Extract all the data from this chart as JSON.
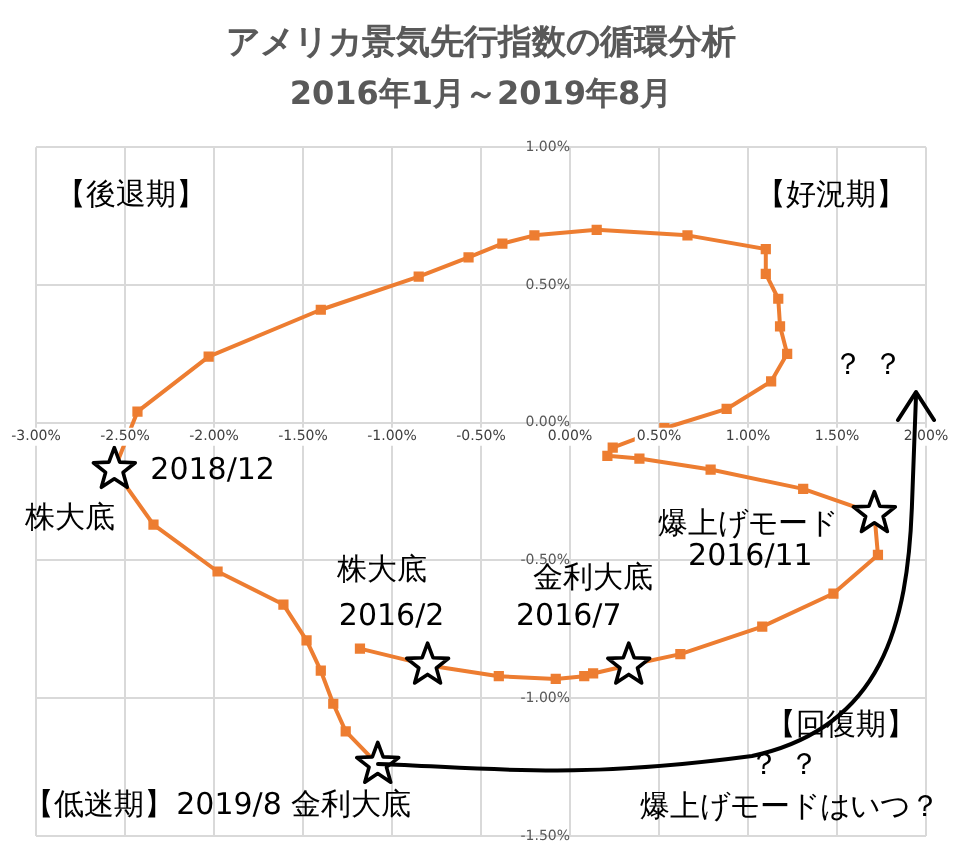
{
  "chart_data": {
    "type": "line",
    "title": "アメリカ景気先行指数の循環分析",
    "subtitle": "2016年1月～2019年8月",
    "series": [
      {
        "type": "line",
        "color": "#ed7d31",
        "marker": "square",
        "x": [
          -1.18,
          -0.8,
          -0.4,
          -0.08,
          0.08,
          0.13,
          0.33,
          0.62,
          1.08,
          1.48,
          1.73,
          1.71,
          1.31,
          0.79,
          0.39,
          0.21,
          0.24,
          0.53,
          0.88,
          1.13,
          1.22,
          1.18,
          1.17,
          1.1,
          1.1,
          0.66,
          0.15,
          -0.2,
          -0.38,
          -0.57,
          -0.85,
          -1.4,
          -2.03,
          -2.43,
          -2.56,
          -2.34,
          -1.98,
          -1.61,
          -1.48,
          -1.4,
          -1.33,
          -1.26,
          -1.08
        ],
        "values": [
          -0.82,
          -0.88,
          -0.92,
          -0.93,
          -0.92,
          -0.91,
          -0.88,
          -0.84,
          -0.74,
          -0.62,
          -0.48,
          -0.33,
          -0.24,
          -0.17,
          -0.13,
          -0.12,
          -0.09,
          -0.02,
          0.05,
          0.15,
          0.25,
          0.35,
          0.45,
          0.54,
          0.63,
          0.68,
          0.7,
          0.68,
          0.65,
          0.6,
          0.53,
          0.41,
          0.24,
          0.04,
          -0.17,
          -0.37,
          -0.54,
          -0.66,
          -0.79,
          -0.9,
          -1.02,
          -1.12,
          -1.24
        ]
      },
      {
        "type": "scatter",
        "color": "#000000",
        "marker": "star",
        "x": [
          -0.8,
          0.33,
          1.71,
          -2.56,
          -1.08
        ],
        "values": [
          -0.88,
          -0.88,
          -0.33,
          -0.17,
          -1.24
        ]
      }
    ],
    "xlim": [
      -3,
      2
    ],
    "ylim": [
      -1.5,
      1
    ],
    "xticks": [
      {
        "value": -3,
        "label": "-3.00%"
      },
      {
        "value": -2.5,
        "label": "-2.50%"
      },
      {
        "value": -2,
        "label": "-2.00%"
      },
      {
        "value": -1.5,
        "label": "-1.50%"
      },
      {
        "value": -1,
        "label": "-1.00%"
      },
      {
        "value": -0.5,
        "label": "-0.50%"
      },
      {
        "value": 0,
        "label": "0.00%"
      },
      {
        "value": 0.5,
        "label": "0.50%"
      },
      {
        "value": 1,
        "label": "1.00%"
      },
      {
        "value": 1.5,
        "label": "1.50%"
      },
      {
        "value": 2,
        "label": "2.00%"
      }
    ],
    "yticks": [
      {
        "value": -1.5,
        "label": "-1.50%"
      },
      {
        "value": -1,
        "label": "-1.00%"
      },
      {
        "value": -0.5,
        "label": "-0.50%"
      },
      {
        "value": 0,
        "label": "0.00%"
      },
      {
        "value": 0.5,
        "label": "0.50%"
      },
      {
        "value": 1,
        "label": "1.00%"
      }
    ],
    "grid": true,
    "legend": false,
    "annotations": [
      "【後退期】",
      "【好況期】",
      "？ ？",
      "【低迷期】",
      "【回復期】",
      "？ ？",
      "爆上げモードはいつ？",
      {
        "text": "2018/12",
        "x": -2.56,
        "y": -0.17
      },
      {
        "text": "株大底",
        "x": -2.56,
        "y": -0.17
      },
      {
        "text": "株大底",
        "x": -0.8,
        "y": -0.88
      },
      {
        "text": "2016/2",
        "x": -0.8,
        "y": -0.88
      },
      {
        "text": "金利大底",
        "x": 0.33,
        "y": -0.88
      },
      {
        "text": "2016/7",
        "x": 0.33,
        "y": -0.88
      },
      {
        "text": "爆上げモード",
        "x": 1.71,
        "y": -0.33
      },
      {
        "text": "2016/11",
        "x": 1.71,
        "y": -0.33
      },
      {
        "text": "2019/8 金利大底",
        "x": -1.08,
        "y": -1.24
      }
    ]
  }
}
